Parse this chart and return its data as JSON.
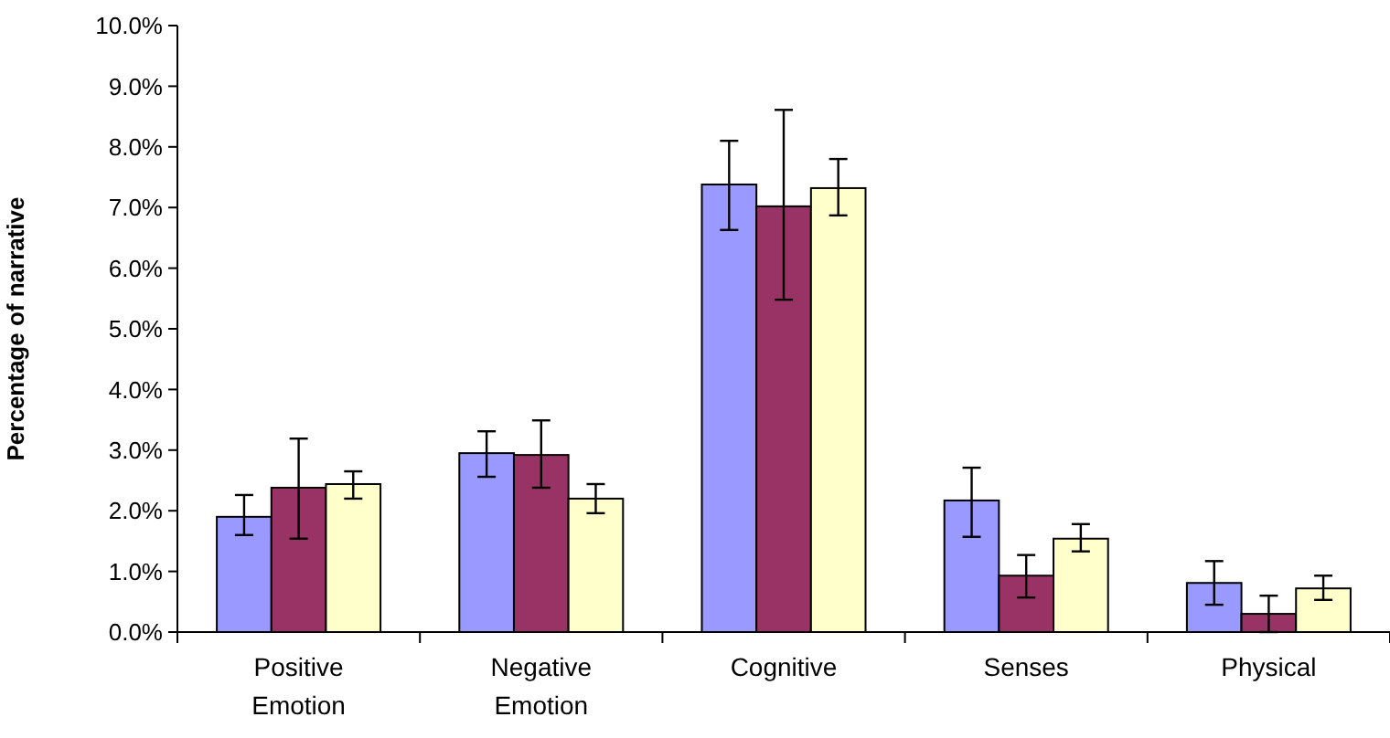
{
  "chart_data": {
    "type": "bar",
    "ylabel": "Percentage of narrative",
    "categories": [
      "Positive Emotion",
      "Negative Emotion",
      "Cognitive",
      "Senses",
      "Physical"
    ],
    "series": [
      {
        "color": "#9999ff",
        "values": [
          1.9,
          2.95,
          7.38,
          2.17,
          0.81
        ],
        "errors": [
          [
            1.6,
            2.26
          ],
          [
            2.56,
            3.31
          ],
          [
            6.63,
            8.1
          ],
          [
            1.57,
            2.71
          ],
          [
            0.45,
            1.17
          ]
        ]
      },
      {
        "color": "#993366",
        "values": [
          2.38,
          2.92,
          7.02,
          0.93,
          0.3
        ],
        "errors": [
          [
            1.54,
            3.19
          ],
          [
            2.38,
            3.49
          ],
          [
            5.48,
            8.61
          ],
          [
            0.57,
            1.27
          ],
          [
            0,
            0.6
          ]
        ]
      },
      {
        "color": "#ffffcc",
        "values": [
          2.44,
          2.2,
          7.32,
          1.54,
          0.72
        ],
        "errors": [
          [
            2.2,
            2.65
          ],
          [
            1.96,
            2.44
          ],
          [
            6.87,
            7.8
          ],
          [
            1.33,
            1.78
          ],
          [
            0.53,
            0.93
          ]
        ]
      }
    ],
    "ylim": [
      0,
      10
    ],
    "yticks": [
      {
        "value": 0,
        "label": "0.0%"
      },
      {
        "value": 1,
        "label": "1.0%"
      },
      {
        "value": 2,
        "label": "2.0%"
      },
      {
        "value": 3,
        "label": "3.0%"
      },
      {
        "value": 4,
        "label": "4.0%"
      },
      {
        "value": 5,
        "label": "5.0%"
      },
      {
        "value": 6,
        "label": "6.0%"
      },
      {
        "value": 7,
        "label": "7.0%"
      },
      {
        "value": 8,
        "label": "8.0%"
      },
      {
        "value": 9,
        "label": "9.0%"
      },
      {
        "value": 10,
        "label": "10.0%"
      }
    ],
    "grid": false
  }
}
